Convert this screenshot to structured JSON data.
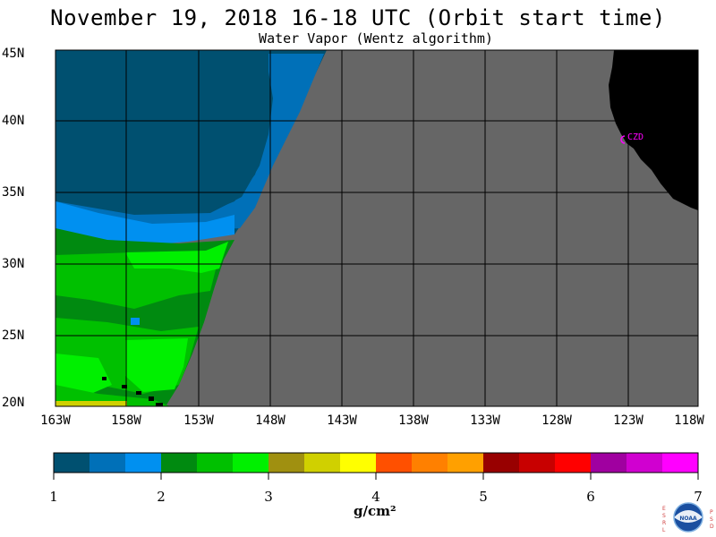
{
  "header": {
    "title": "November 19, 2018  16-18 UTC  (Orbit start time)",
    "subtitle": "Water Vapor (Wentz algorithm)"
  },
  "map": {
    "lat_labels": [
      "45N",
      "40N",
      "35N",
      "30N",
      "25N",
      "20N"
    ],
    "lon_labels": [
      "163W",
      "158W",
      "153W",
      "148W",
      "143W",
      "138W",
      "133W",
      "128W",
      "123W",
      "118W"
    ],
    "station_label": "CZD",
    "colors": {
      "no_data": "#666666",
      "land": "#000000",
      "grid": "#000000",
      "station": "#ff00ff"
    }
  },
  "colorbar": {
    "colors": [
      "#005070",
      "#0070b8",
      "#0090f0",
      "#008a10",
      "#00c000",
      "#00f000",
      "#a09010",
      "#d0d000",
      "#ffff00",
      "#ff5000",
      "#ff8000",
      "#ffa000",
      "#980000",
      "#c80000",
      "#ff0000",
      "#a000a0",
      "#d000d0",
      "#ff00ff"
    ],
    "ticks": [
      "1",
      "2",
      "3",
      "4",
      "5",
      "6",
      "7"
    ],
    "units": "g/cm²"
  },
  "logo": {
    "text_left": "ESRL",
    "text_right": "PSD",
    "center": "NOAA"
  }
}
